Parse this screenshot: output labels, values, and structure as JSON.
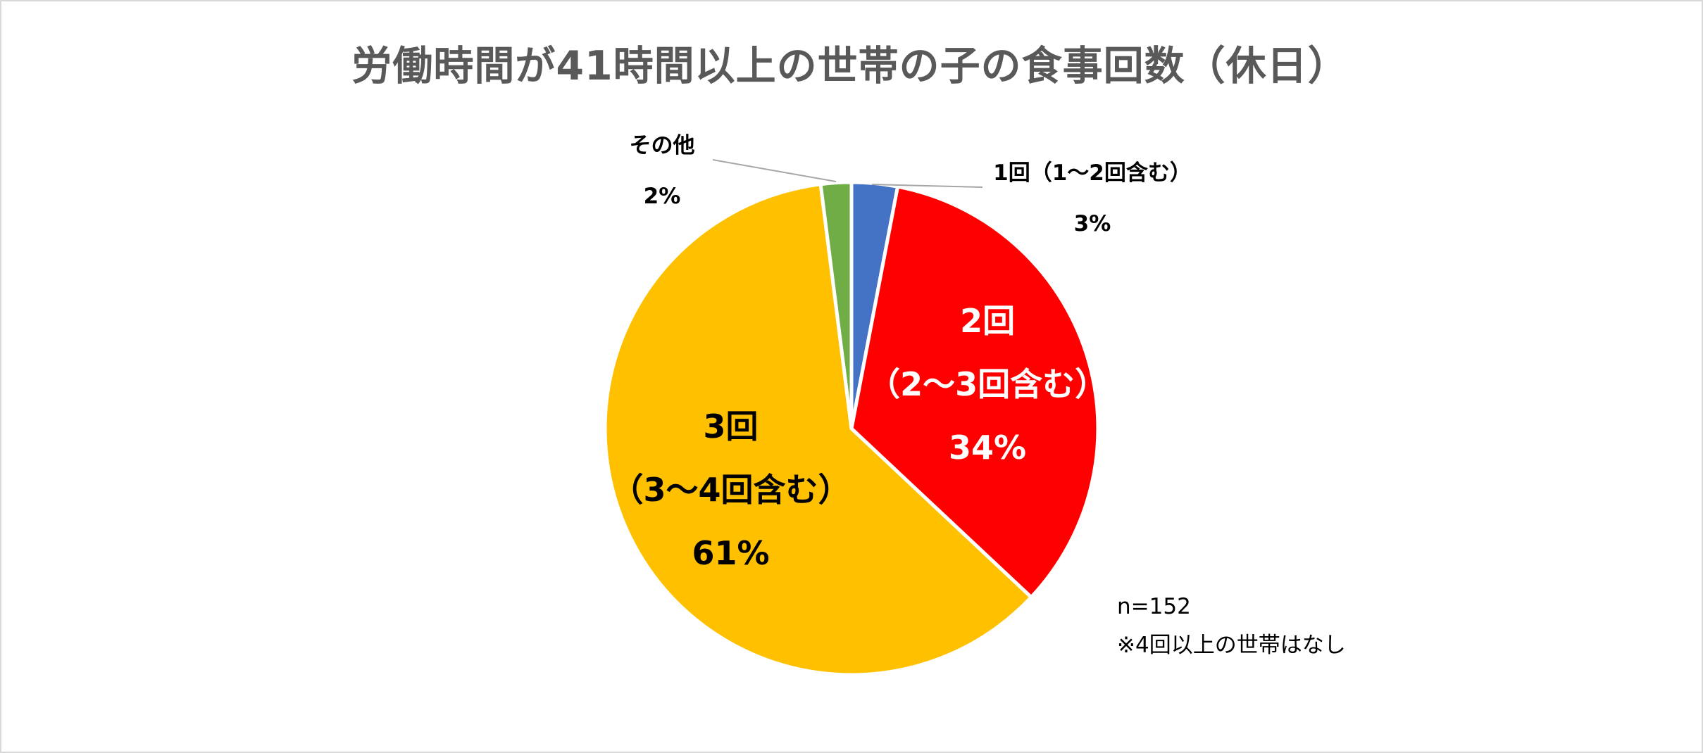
{
  "chart_data": {
    "type": "pie",
    "title": "労働時間が41時間以上の世帯の子の食事回数（休日）",
    "slices": [
      {
        "label": "1回（1～2回含む）",
        "value": 3,
        "value_label": "3%",
        "color": "#4472C4",
        "label_color": "#000000"
      },
      {
        "label_lines": [
          "2回",
          "（2～3回含む）"
        ],
        "label": "2回（2～3回含む）",
        "value": 34,
        "value_label": "34%",
        "color": "#FF0000",
        "label_color": "#FFFFFF"
      },
      {
        "label_lines": [
          "3回",
          "（3～4回含む）"
        ],
        "label": "3回（3～4回含む）",
        "value": 61,
        "value_label": "61%",
        "color": "#FFC000",
        "label_color": "#000000"
      },
      {
        "label": "その他",
        "value": 2,
        "value_label": "2%",
        "color": "#70AD47",
        "label_color": "#000000"
      }
    ],
    "start_angle_deg": 0,
    "direction": "clockwise",
    "legend": "none",
    "notes": [
      "n=152",
      "※4回以上の世帯はなし"
    ]
  }
}
